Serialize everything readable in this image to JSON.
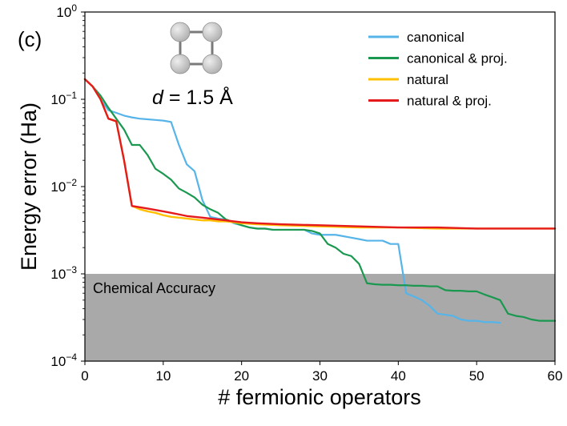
{
  "chart_data": {
    "type": "line",
    "panel_label": "(c)",
    "xlabel": "# fermionic operators",
    "ylabel": "Energy error (Ha)",
    "xlim": [
      0,
      60
    ],
    "ylim": [
      0.0001,
      1
    ],
    "yscale": "log",
    "x_ticks": [
      0,
      10,
      20,
      30,
      40,
      50,
      60
    ],
    "x_tick_labels": [
      "0",
      "10",
      "20",
      "30",
      "40",
      "50",
      "60"
    ],
    "y_ticks": [
      1,
      0.1,
      0.01,
      0.001,
      0.0001
    ],
    "y_tick_labels": [
      {
        "base": "10",
        "exp": "0"
      },
      {
        "base": "10",
        "exp": "−1"
      },
      {
        "base": "10",
        "exp": "−2"
      },
      {
        "base": "10",
        "exp": "−3"
      },
      {
        "base": "10",
        "exp": "−4"
      }
    ],
    "grid": false,
    "legend_position": "top-right",
    "shaded_region": {
      "label": "Chemical Accuracy",
      "y_from": 0.0001,
      "y_to": 0.001,
      "color": "#a9a9a9"
    },
    "annotation": {
      "italic": "d",
      "text": " = 1.5 Å"
    },
    "molecule": {
      "atoms": 4,
      "shape": "square",
      "color": "#b0b0b0"
    },
    "series": [
      {
        "name": "canonical",
        "color": "#56b4e9",
        "x": [
          0,
          1,
          2,
          3,
          4,
          5,
          6,
          7,
          8,
          9,
          10,
          11,
          12,
          13,
          14,
          15,
          16,
          17,
          18,
          19,
          20,
          21,
          22,
          23,
          24,
          25,
          26,
          27,
          28,
          29,
          30,
          31,
          32,
          33,
          34,
          35,
          36,
          37,
          38,
          39,
          40,
          41,
          42,
          43,
          44,
          45,
          46,
          47,
          48,
          49,
          50,
          51,
          52,
          53
        ],
        "y": [
          0.17,
          0.14,
          0.1,
          0.075,
          0.07,
          0.065,
          0.062,
          0.06,
          0.059,
          0.058,
          0.057,
          0.055,
          0.03,
          0.018,
          0.015,
          0.007,
          0.0045,
          0.0043,
          0.0042,
          0.0038,
          0.0036,
          0.0034,
          0.0033,
          0.0033,
          0.0032,
          0.0032,
          0.0032,
          0.0032,
          0.0032,
          0.0029,
          0.0028,
          0.0028,
          0.0028,
          0.0027,
          0.0026,
          0.0025,
          0.0024,
          0.0024,
          0.0024,
          0.0022,
          0.0022,
          0.0006,
          0.00055,
          0.0005,
          0.00043,
          0.00035,
          0.00034,
          0.00033,
          0.0003,
          0.00029,
          0.00029,
          0.00028,
          0.00028,
          0.000275
        ]
      },
      {
        "name": "canonical & proj.",
        "color": "#1a9850",
        "x": [
          0,
          1,
          2,
          3,
          4,
          5,
          6,
          7,
          8,
          9,
          10,
          11,
          12,
          13,
          14,
          15,
          16,
          17,
          18,
          19,
          20,
          21,
          22,
          23,
          24,
          25,
          26,
          27,
          28,
          29,
          30,
          31,
          32,
          33,
          34,
          35,
          36,
          37,
          38,
          39,
          40,
          41,
          42,
          43,
          44,
          45,
          46,
          47,
          48,
          49,
          50,
          51,
          52,
          53,
          54,
          55,
          56,
          57,
          58,
          59,
          60
        ],
        "y": [
          0.17,
          0.14,
          0.11,
          0.08,
          0.06,
          0.045,
          0.03,
          0.03,
          0.023,
          0.016,
          0.014,
          0.012,
          0.0095,
          0.0085,
          0.0075,
          0.0062,
          0.0055,
          0.005,
          0.0042,
          0.0039,
          0.0036,
          0.0034,
          0.0033,
          0.0033,
          0.0032,
          0.0032,
          0.0032,
          0.0032,
          0.0032,
          0.0031,
          0.0029,
          0.0022,
          0.002,
          0.0017,
          0.0016,
          0.0013,
          0.00078,
          0.00076,
          0.00075,
          0.00075,
          0.00074,
          0.00074,
          0.00073,
          0.00073,
          0.00072,
          0.00072,
          0.00065,
          0.00064,
          0.00064,
          0.00063,
          0.00063,
          0.00058,
          0.00054,
          0.0005,
          0.00035,
          0.00033,
          0.00032,
          0.0003,
          0.00029,
          0.00029,
          0.00029
        ]
      },
      {
        "name": "natural",
        "color": "#ffc000",
        "x": [
          0,
          1,
          2,
          3,
          4,
          5,
          6,
          7,
          8,
          9,
          10,
          11,
          12,
          13,
          14,
          15,
          16,
          17,
          18,
          19,
          20,
          22,
          25,
          30,
          35,
          40,
          45,
          50,
          55,
          60
        ],
        "y": [
          0.17,
          0.14,
          0.1,
          0.06,
          0.056,
          0.02,
          0.006,
          0.0055,
          0.0052,
          0.005,
          0.0047,
          0.0045,
          0.0044,
          0.0043,
          0.0042,
          0.0041,
          0.0041,
          0.004,
          0.004,
          0.0039,
          0.0038,
          0.0037,
          0.0036,
          0.0035,
          0.0034,
          0.0034,
          0.0033,
          0.0033,
          0.0033,
          0.0033
        ]
      },
      {
        "name": "natural & proj.",
        "color": "#e41a1c",
        "x": [
          0,
          1,
          2,
          3,
          4,
          5,
          6,
          7,
          8,
          9,
          10,
          11,
          12,
          13,
          14,
          15,
          16,
          17,
          18,
          19,
          20,
          22,
          25,
          30,
          35,
          40,
          45,
          50,
          55,
          60
        ],
        "y": [
          0.17,
          0.14,
          0.1,
          0.06,
          0.056,
          0.02,
          0.006,
          0.0058,
          0.0056,
          0.0054,
          0.0052,
          0.005,
          0.0048,
          0.0046,
          0.0045,
          0.0044,
          0.0043,
          0.0042,
          0.0041,
          0.004,
          0.0039,
          0.0038,
          0.0037,
          0.0036,
          0.0035,
          0.0034,
          0.0034,
          0.0033,
          0.0033,
          0.0033
        ]
      }
    ]
  }
}
